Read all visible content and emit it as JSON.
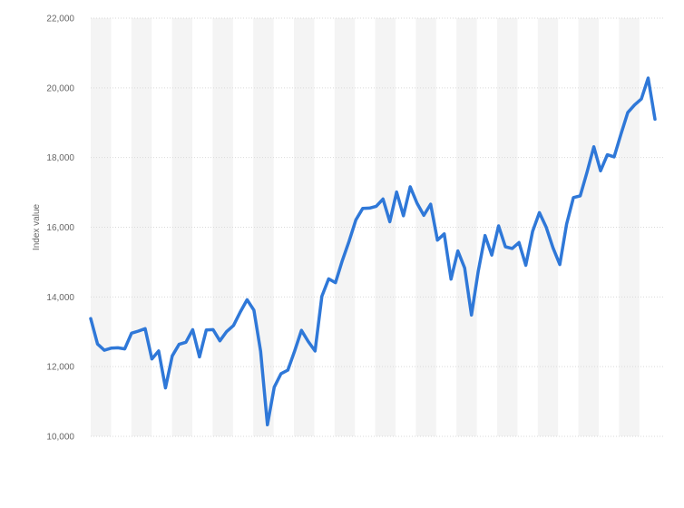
{
  "chart_data": {
    "type": "line",
    "title": "",
    "xlabel": "",
    "ylabel": "Index value",
    "ylim": [
      10000,
      22000
    ],
    "yticks": [
      10000,
      12000,
      14000,
      16000,
      18000,
      20000,
      22000
    ],
    "ytick_labels": [
      "10,000",
      "12,000",
      "14,000",
      "16,000",
      "18,000",
      "20,000",
      "22,000"
    ],
    "grid": true,
    "legend": "none",
    "colors": {
      "line": "#2f78d8",
      "band": "#f4f4f4",
      "grid": "#d9d9d9",
      "text": "#666666"
    },
    "series": [
      {
        "values": [
          13380,
          12650,
          12470,
          12530,
          12540,
          12510,
          12960,
          13020,
          13090,
          12220,
          12450,
          11390,
          12310,
          12640,
          12700,
          13060,
          12280,
          13050,
          13060,
          12740,
          13010,
          13180,
          13570,
          13920,
          13620,
          12440,
          10330,
          11410,
          11800,
          11900,
          12450,
          13040,
          12720,
          12450,
          14020,
          14520,
          14410,
          15040,
          15600,
          16210,
          16540,
          16550,
          16600,
          16810,
          16160,
          17010,
          16330,
          17160,
          16690,
          16340,
          16660,
          15630,
          15810,
          14510,
          15320,
          14830,
          13480,
          14740,
          15760,
          15200,
          16040,
          15440,
          15390,
          15560,
          14910,
          15880,
          16420,
          16000,
          15410,
          14930,
          16090,
          16850,
          16900,
          17580,
          18310,
          17620,
          18080,
          18020,
          18670,
          19290,
          19510,
          19680,
          20280,
          19100
        ]
      }
    ]
  }
}
